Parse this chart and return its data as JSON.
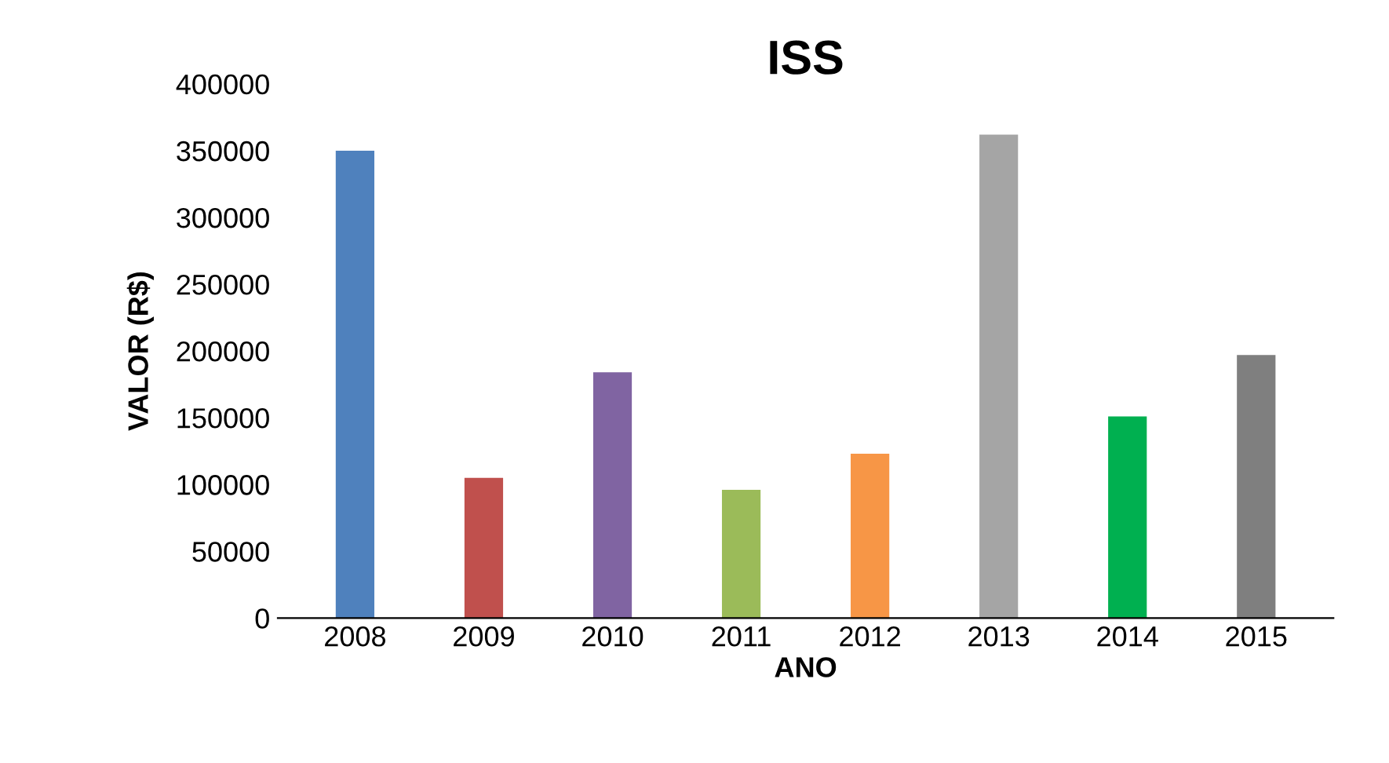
{
  "chart_data": {
    "type": "bar",
    "title": "ISS",
    "xlabel": "ANO",
    "ylabel": "VALOR (R$)",
    "categories": [
      "2008",
      "2009",
      "2010",
      "2011",
      "2012",
      "2013",
      "2014",
      "2015"
    ],
    "values": [
      350000,
      105000,
      184000,
      96000,
      123000,
      362000,
      151000,
      197000
    ],
    "colors": [
      "#4f81bd",
      "#c0504d",
      "#8064a2",
      "#9bbb59",
      "#f79646",
      "#a5a5a5",
      "#00b050",
      "#7f7f7f"
    ],
    "ylim": [
      0,
      400000
    ],
    "yticks": [
      0,
      50000,
      100000,
      150000,
      200000,
      250000,
      300000,
      350000,
      400000
    ],
    "grid": false
  }
}
